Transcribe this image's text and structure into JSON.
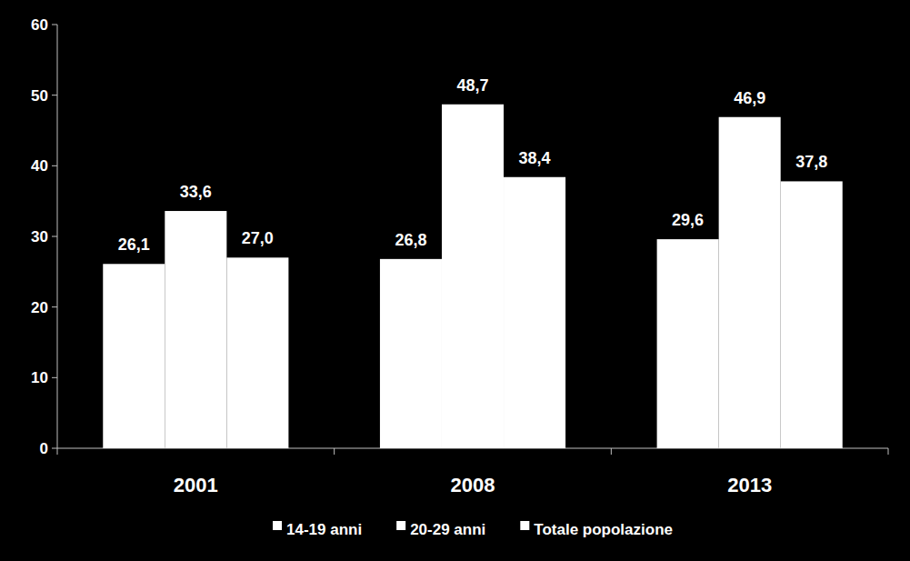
{
  "chart_data": {
    "type": "bar",
    "categories": [
      "2001",
      "2008",
      "2013"
    ],
    "series": [
      {
        "name": "14-19 anni",
        "color": "#ffffff",
        "values": [
          26.1,
          26.8,
          29.6
        ],
        "value_labels": [
          "26,1",
          "26,8",
          "29,6"
        ]
      },
      {
        "name": "20-29 anni",
        "color": "#ffffff",
        "values": [
          33.6,
          48.7,
          46.9
        ],
        "value_labels": [
          "33,6",
          "48,7",
          "46,9"
        ]
      },
      {
        "name": "Totale popolazione",
        "color": "#ffffff",
        "values": [
          27.0,
          38.4,
          37.8
        ],
        "value_labels": [
          "27,0",
          "38,4",
          "37,8"
        ]
      }
    ],
    "ylim": [
      0,
      60
    ],
    "yticks": [
      0,
      10,
      20,
      30,
      40,
      50,
      60
    ],
    "grid": false,
    "legend": "bottom",
    "data_labels": true
  }
}
